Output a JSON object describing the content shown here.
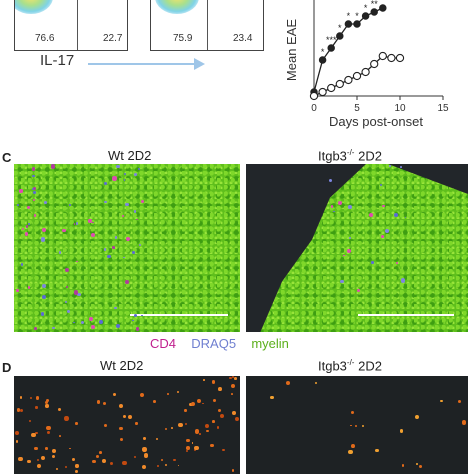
{
  "flow": {
    "plot1": {
      "left_value": "76.6",
      "right_value": "22.7"
    },
    "plot2": {
      "left_value": "75.9",
      "right_value": "23.4"
    },
    "axis_label": "IL-17"
  },
  "chart_data": {
    "type": "line",
    "xlabel": "Days post-onset",
    "ylabel": "Mean EAE",
    "xlim": [
      0,
      15
    ],
    "x_ticks": [
      "0",
      "5",
      "10",
      "15"
    ],
    "series": [
      {
        "marker": "filled-circle",
        "color": "#222222",
        "x": [
          0,
          1,
          2,
          3,
          4,
          5,
          6,
          7,
          8
        ],
        "y": [
          0.1,
          0.9,
          1.2,
          1.5,
          1.8,
          1.8,
          2.0,
          2.1,
          2.2
        ]
      },
      {
        "marker": "open-circle",
        "color": "#222222",
        "x": [
          0,
          1,
          2,
          3,
          4,
          5,
          6,
          7,
          8,
          9,
          10
        ],
        "y": [
          0.0,
          0.1,
          0.2,
          0.3,
          0.4,
          0.5,
          0.6,
          0.8,
          1.0,
          0.95,
          0.95
        ]
      }
    ],
    "annotations": [
      "*",
      "***",
      "*",
      "*",
      "*",
      "*",
      "**"
    ],
    "y_visible_range": [
      0,
      2.3
    ]
  },
  "panel_c": {
    "letter": "C",
    "left_title": "Wt 2D2",
    "right_title": "Itgb3",
    "right_sup": "-/-",
    "right_suffix": " 2D2",
    "legend": {
      "cd4": "CD4",
      "draq5": "DRAQ5",
      "myelin": "myelin"
    },
    "colors": {
      "cd4": "#c0208e",
      "draq5": "#6f7fd0",
      "myelin": "#5cb01c"
    }
  },
  "panel_d": {
    "letter": "D",
    "left_title": "Wt 2D2",
    "right_title": "Itgb3",
    "right_sup": "-/-",
    "right_suffix": " 2D2"
  }
}
